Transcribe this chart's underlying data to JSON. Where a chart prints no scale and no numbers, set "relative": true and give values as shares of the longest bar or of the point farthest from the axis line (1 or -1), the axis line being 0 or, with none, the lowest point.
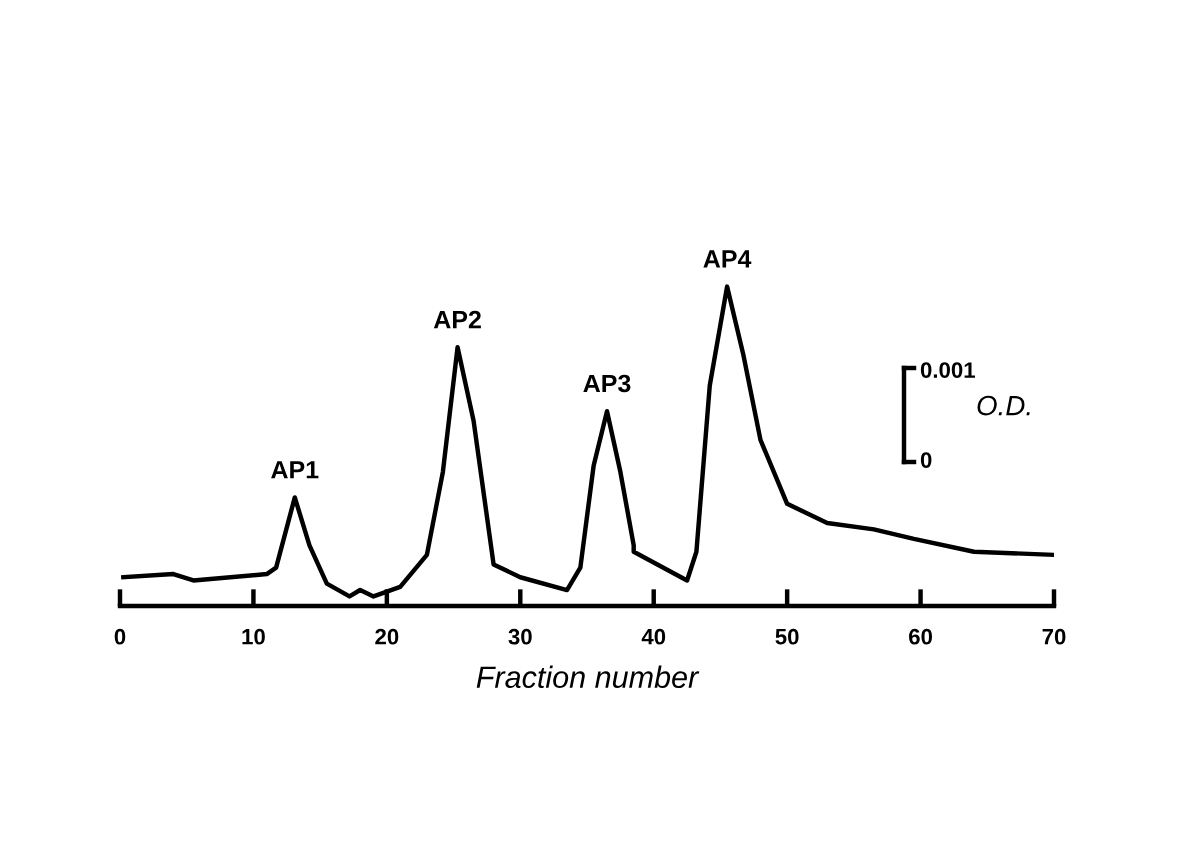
{
  "chart_data": {
    "type": "line",
    "xlabel": "Fraction number",
    "relative": true,
    "x": [
      0.25,
      4.0,
      5.5,
      11.0,
      11.7,
      13.1,
      14.2,
      15.5,
      17.2,
      18,
      19,
      21,
      23,
      24.2,
      25.3,
      26.5,
      28,
      30,
      33.5,
      34.5,
      35.5,
      36.5,
      37.5,
      38.5,
      38.5,
      42.5,
      43.2,
      44.2,
      45.5,
      46.7,
      48,
      50,
      53,
      56.5,
      59.5,
      64,
      70
    ],
    "values": [
      0.09,
      0.1,
      0.08,
      0.1,
      0.12,
      0.34,
      0.19,
      0.07,
      0.03,
      0.05,
      0.03,
      0.06,
      0.16,
      0.42,
      0.81,
      0.58,
      0.13,
      0.09,
      0.05,
      0.12,
      0.44,
      0.61,
      0.42,
      0.19,
      0.17,
      0.08,
      0.17,
      0.69,
      1,
      0.79,
      0.52,
      0.32,
      0.26,
      0.24,
      0.21,
      0.17,
      0.16
    ],
    "color": "#000000",
    "xlim": [
      0,
      70
    ],
    "xticks": [
      0,
      10,
      20,
      30,
      40,
      50,
      60,
      70
    ],
    "annotations": [
      {
        "text": "AP1",
        "x": 13.1,
        "y": 0.34
      },
      {
        "text": "AP2",
        "x": 25.3,
        "y": 0.81
      },
      {
        "text": "AP3",
        "x": 36.5,
        "y": 0.61
      },
      {
        "text": "AP4",
        "x": 45.5,
        "y": 1
      },
      "0.001",
      "0",
      "O.D."
    ],
    "grid": false
  }
}
